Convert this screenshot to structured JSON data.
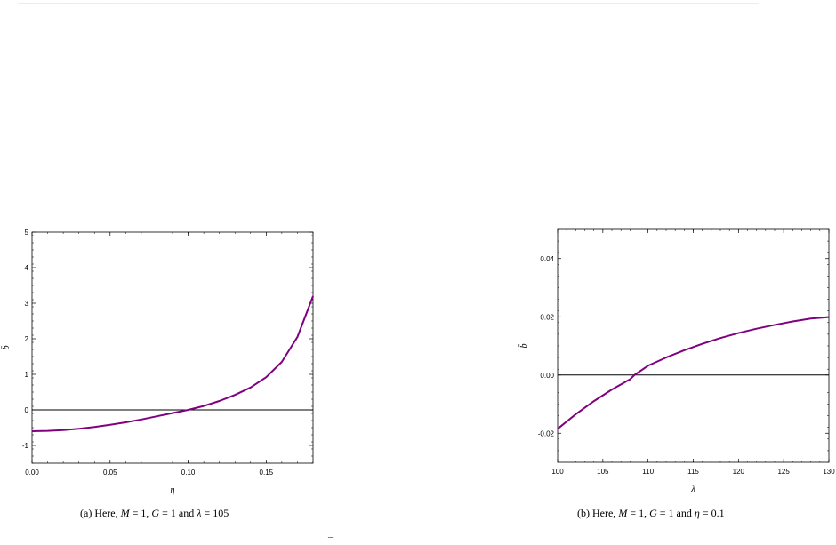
{
  "header_fragment": "_______________________________________________________________________________________________________________",
  "footer_fragment": "¯",
  "chart_data": [
    {
      "type": "line",
      "xlabel": "η",
      "ylabel": "b̄",
      "xlim": [
        0,
        0.18
      ],
      "ylim": [
        -1.5,
        5
      ],
      "xticks": [
        "0.00",
        "0.05",
        "0.10",
        "0.15"
      ],
      "xtick_values": [
        0,
        0.05,
        0.1,
        0.15
      ],
      "yticks": [
        "-1",
        "0",
        "1",
        "2",
        "3",
        "4",
        "5"
      ],
      "ytick_values": [
        -1,
        0,
        1,
        2,
        3,
        4,
        5
      ],
      "reference_line_y": 0,
      "series_color": "#800080",
      "series": [
        {
          "x": [
            0,
            0.01,
            0.02,
            0.03,
            0.04,
            0.05,
            0.06,
            0.07,
            0.08,
            0.09,
            0.1,
            0.11,
            0.12,
            0.13,
            0.14,
            0.15,
            0.16,
            0.17,
            0.18
          ],
          "y": [
            -0.6,
            -0.59,
            -0.57,
            -0.53,
            -0.48,
            -0.42,
            -0.35,
            -0.27,
            -0.18,
            -0.09,
            0.0,
            0.11,
            0.25,
            0.42,
            0.63,
            0.92,
            1.35,
            2.05,
            3.2
          ]
        }
      ],
      "caption_prefix": "(a) Here, ",
      "caption_vars": [
        {
          "name": "M",
          "value": "1"
        },
        {
          "name": "G",
          "value": "1"
        },
        {
          "name": "λ",
          "value": "105"
        }
      ]
    },
    {
      "type": "line",
      "xlabel": "λ",
      "ylabel": "b̄",
      "xlim": [
        100,
        130
      ],
      "ylim": [
        -0.03,
        0.05
      ],
      "xticks": [
        "100",
        "105",
        "110",
        "115",
        "120",
        "125",
        "130"
      ],
      "xtick_values": [
        100,
        105,
        110,
        115,
        120,
        125,
        130
      ],
      "yticks": [
        "-0.02",
        "0.00",
        "0.02",
        "0.04"
      ],
      "ytick_values": [
        -0.02,
        0.0,
        0.02,
        0.04
      ],
      "reference_line_y": 0,
      "series_color": "#800080",
      "series": [
        {
          "x": [
            100,
            102,
            104,
            106,
            108,
            108.5,
            110,
            112,
            114,
            116,
            118,
            120,
            122,
            124,
            126,
            128,
            130
          ],
          "y": [
            -0.0185,
            -0.0135,
            -0.009,
            -0.005,
            -0.0015,
            0.0,
            0.0032,
            0.006,
            0.0085,
            0.0107,
            0.0127,
            0.0144,
            0.0159,
            0.0172,
            0.0184,
            0.0194,
            0.0199
          ]
        }
      ],
      "caption_prefix": "(b) Here, ",
      "caption_vars": [
        {
          "name": "M",
          "value": "1"
        },
        {
          "name": "G",
          "value": "1"
        },
        {
          "name": "η",
          "value": "0.1"
        }
      ]
    }
  ]
}
